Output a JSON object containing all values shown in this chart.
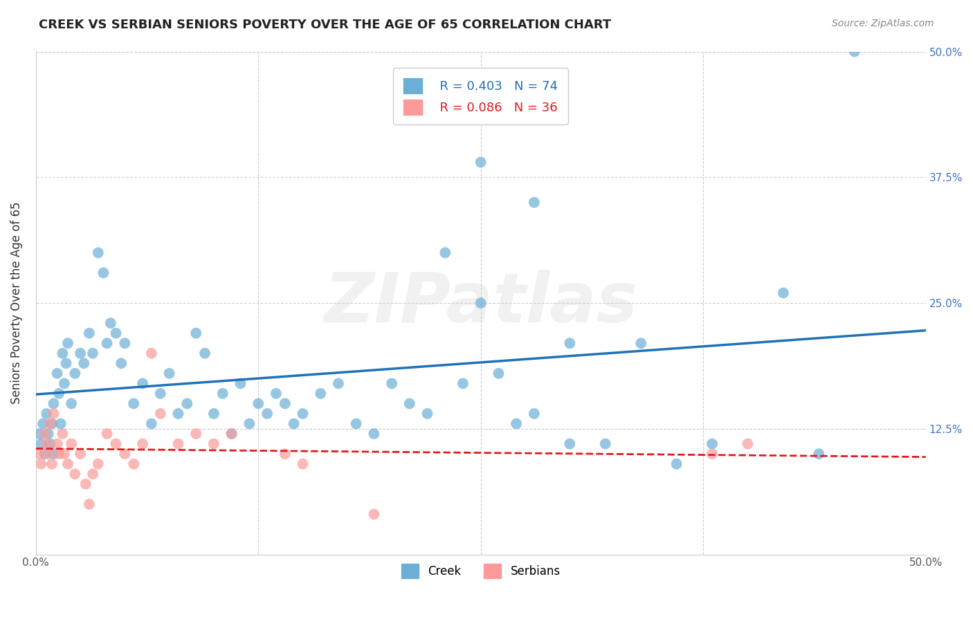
{
  "title": "CREEK VS SERBIAN SENIORS POVERTY OVER THE AGE OF 65 CORRELATION CHART",
  "source": "Source: ZipAtlas.com",
  "ylabel": "Seniors Poverty Over the Age of 65",
  "xlim": [
    0.0,
    0.5
  ],
  "ylim": [
    0.0,
    0.5
  ],
  "creek_color": "#6baed6",
  "serbian_color": "#fb9a99",
  "creek_line_color": "#2171b5",
  "serbian_line_color": "#e31a1c",
  "creek_R": 0.403,
  "creek_N": 74,
  "serbian_R": 0.086,
  "serbian_N": 36,
  "legend_label_creek": "Creek",
  "legend_label_serbian": "Serbians",
  "watermark": "ZIPatlas",
  "bg_color": "#ffffff",
  "grid_color": "#cccccc",
  "creek_x": [
    0.002,
    0.003,
    0.004,
    0.005,
    0.006,
    0.007,
    0.008,
    0.009,
    0.01,
    0.01,
    0.012,
    0.013,
    0.014,
    0.015,
    0.016,
    0.017,
    0.018,
    0.02,
    0.022,
    0.025,
    0.027,
    0.03,
    0.032,
    0.035,
    0.038,
    0.04,
    0.042,
    0.045,
    0.048,
    0.05,
    0.055,
    0.06,
    0.065,
    0.07,
    0.075,
    0.08,
    0.085,
    0.09,
    0.095,
    0.1,
    0.105,
    0.11,
    0.115,
    0.12,
    0.125,
    0.13,
    0.135,
    0.14,
    0.145,
    0.15,
    0.16,
    0.17,
    0.18,
    0.19,
    0.2,
    0.21,
    0.22,
    0.23,
    0.24,
    0.25,
    0.26,
    0.27,
    0.28,
    0.3,
    0.32,
    0.34,
    0.36,
    0.38,
    0.42,
    0.44,
    0.3,
    0.28,
    0.25,
    0.46
  ],
  "creek_y": [
    0.12,
    0.11,
    0.13,
    0.1,
    0.14,
    0.12,
    0.11,
    0.13,
    0.1,
    0.15,
    0.18,
    0.16,
    0.13,
    0.2,
    0.17,
    0.19,
    0.21,
    0.15,
    0.18,
    0.2,
    0.19,
    0.22,
    0.2,
    0.3,
    0.28,
    0.21,
    0.23,
    0.22,
    0.19,
    0.21,
    0.15,
    0.17,
    0.13,
    0.16,
    0.18,
    0.14,
    0.15,
    0.22,
    0.2,
    0.14,
    0.16,
    0.12,
    0.17,
    0.13,
    0.15,
    0.14,
    0.16,
    0.15,
    0.13,
    0.14,
    0.16,
    0.17,
    0.13,
    0.12,
    0.17,
    0.15,
    0.14,
    0.3,
    0.17,
    0.25,
    0.18,
    0.13,
    0.14,
    0.11,
    0.11,
    0.21,
    0.09,
    0.11,
    0.26,
    0.1,
    0.21,
    0.35,
    0.39,
    0.5
  ],
  "serbian_x": [
    0.002,
    0.003,
    0.005,
    0.006,
    0.007,
    0.008,
    0.009,
    0.01,
    0.012,
    0.013,
    0.015,
    0.016,
    0.018,
    0.02,
    0.022,
    0.025,
    0.028,
    0.03,
    0.032,
    0.035,
    0.04,
    0.045,
    0.05,
    0.055,
    0.06,
    0.065,
    0.07,
    0.08,
    0.09,
    0.1,
    0.11,
    0.14,
    0.15,
    0.38,
    0.4,
    0.19
  ],
  "serbian_y": [
    0.1,
    0.09,
    0.12,
    0.11,
    0.1,
    0.13,
    0.09,
    0.14,
    0.11,
    0.1,
    0.12,
    0.1,
    0.09,
    0.11,
    0.08,
    0.1,
    0.07,
    0.05,
    0.08,
    0.09,
    0.12,
    0.11,
    0.1,
    0.09,
    0.11,
    0.2,
    0.14,
    0.11,
    0.12,
    0.11,
    0.12,
    0.1,
    0.09,
    0.1,
    0.11,
    0.04
  ]
}
